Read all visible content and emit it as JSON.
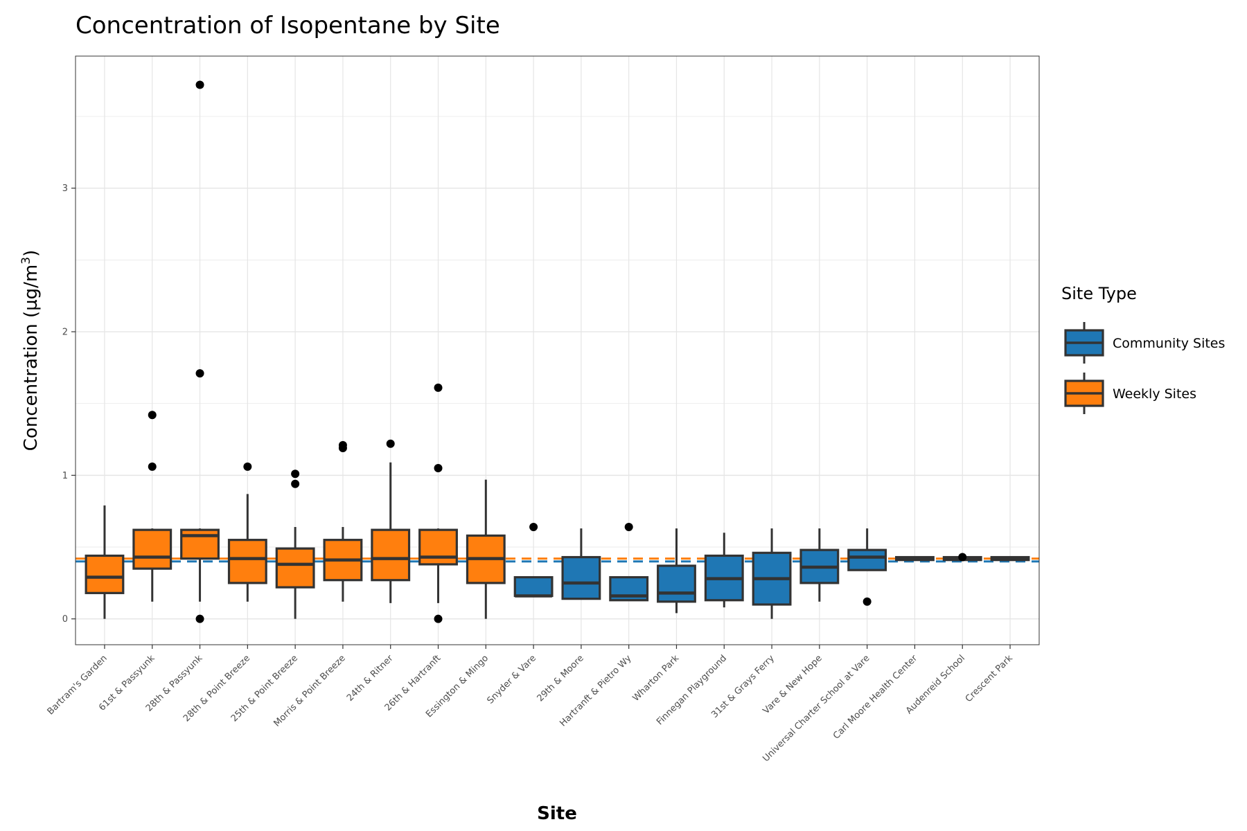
{
  "chart_data": {
    "type": "boxplot",
    "title": "Concentration of Isopentane by Site",
    "xlabel": "Site",
    "ylabel": {
      "main": "Concentration (µg/m",
      "superscript": "3",
      "close": ")"
    },
    "ylim": [
      -0.18,
      3.92
    ],
    "yticks": [
      0,
      1,
      2,
      3
    ],
    "grid": true,
    "colors": {
      "Weekly Sites": "#ff7f0e",
      "Community Sites": "#1f77b4",
      "outline": "#333333",
      "grid": "#e5e5e5"
    },
    "legend": {
      "title": "Site Type",
      "position": "right",
      "items": [
        {
          "label": "Community Sites",
          "color": "#1f77b4"
        },
        {
          "label": "Weekly Sites",
          "color": "#ff7f0e"
        }
      ]
    },
    "reference_lines": [
      {
        "series": "Weekly Sites",
        "y": 0.42,
        "color": "#ff7f0e",
        "style": "dashed"
      },
      {
        "series": "Community Sites",
        "y": 0.4,
        "color": "#1f77b4",
        "style": "dashed"
      }
    ],
    "sites": [
      {
        "name": "Bartram's Garden",
        "type": "Weekly Sites",
        "whislo": 0.0,
        "q1": 0.18,
        "med": 0.29,
        "q3": 0.44,
        "whishi": 0.79,
        "outliers": []
      },
      {
        "name": "61st & Passyunk",
        "type": "Weekly Sites",
        "whislo": 0.12,
        "q1": 0.35,
        "med": 0.43,
        "q3": 0.62,
        "whishi": 0.63,
        "outliers": [
          1.06,
          1.42
        ]
      },
      {
        "name": "28th & Passyunk",
        "type": "Weekly Sites",
        "whislo": 0.12,
        "q1": 0.42,
        "med": 0.58,
        "q3": 0.62,
        "whishi": 0.63,
        "outliers": [
          0.0,
          1.71,
          3.72
        ]
      },
      {
        "name": "28th & Point Breeze",
        "type": "Weekly Sites",
        "whislo": 0.12,
        "q1": 0.25,
        "med": 0.42,
        "q3": 0.55,
        "whishi": 0.87,
        "outliers": [
          1.06
        ]
      },
      {
        "name": "25th & Point Breeze",
        "type": "Weekly Sites",
        "whislo": 0.0,
        "q1": 0.22,
        "med": 0.38,
        "q3": 0.49,
        "whishi": 0.64,
        "outliers": [
          0.94,
          1.01
        ]
      },
      {
        "name": "Morris & Point Breeze",
        "type": "Weekly Sites",
        "whislo": 0.12,
        "q1": 0.27,
        "med": 0.41,
        "q3": 0.55,
        "whishi": 0.64,
        "outliers": [
          1.19,
          1.21
        ]
      },
      {
        "name": "24th & Ritner",
        "type": "Weekly Sites",
        "whislo": 0.11,
        "q1": 0.27,
        "med": 0.42,
        "q3": 0.62,
        "whishi": 1.09,
        "outliers": [
          1.22
        ]
      },
      {
        "name": "26th & Hartranft",
        "type": "Weekly Sites",
        "whislo": 0.11,
        "q1": 0.38,
        "med": 0.43,
        "q3": 0.62,
        "whishi": 0.63,
        "outliers": [
          0.0,
          1.05,
          1.61
        ]
      },
      {
        "name": "Essington & Mingo",
        "type": "Weekly Sites",
        "whislo": 0.0,
        "q1": 0.25,
        "med": 0.42,
        "q3": 0.58,
        "whishi": 0.97,
        "outliers": []
      },
      {
        "name": "Snyder & Vare",
        "type": "Community Sites",
        "whislo": 0.16,
        "q1": 0.16,
        "med": 0.16,
        "q3": 0.29,
        "whishi": 0.29,
        "outliers": [
          0.64
        ]
      },
      {
        "name": "29th & Moore",
        "type": "Community Sites",
        "whislo": 0.14,
        "q1": 0.14,
        "med": 0.25,
        "q3": 0.43,
        "whishi": 0.63,
        "outliers": []
      },
      {
        "name": "Hartranft & Pietro Wy",
        "type": "Community Sites",
        "whislo": 0.13,
        "q1": 0.13,
        "med": 0.16,
        "q3": 0.29,
        "whishi": 0.29,
        "outliers": [
          0.64
        ]
      },
      {
        "name": "Wharton Park",
        "type": "Community Sites",
        "whislo": 0.04,
        "q1": 0.12,
        "med": 0.18,
        "q3": 0.37,
        "whishi": 0.63,
        "outliers": []
      },
      {
        "name": "Finnegan Playground",
        "type": "Community Sites",
        "whislo": 0.08,
        "q1": 0.13,
        "med": 0.28,
        "q3": 0.44,
        "whishi": 0.6,
        "outliers": []
      },
      {
        "name": "31st & Grays Ferry",
        "type": "Community Sites",
        "whislo": 0.0,
        "q1": 0.1,
        "med": 0.28,
        "q3": 0.46,
        "whishi": 0.63,
        "outliers": []
      },
      {
        "name": "Vare & New Hope",
        "type": "Community Sites",
        "whislo": 0.12,
        "q1": 0.25,
        "med": 0.36,
        "q3": 0.48,
        "whishi": 0.63,
        "outliers": []
      },
      {
        "name": "Universal Charter School at Vare",
        "type": "Community Sites",
        "whislo": 0.34,
        "q1": 0.34,
        "med": 0.43,
        "q3": 0.48,
        "whishi": 0.63,
        "outliers": [
          0.12
        ]
      },
      {
        "name": "Carl Moore Health Center",
        "type": "Community Sites",
        "whislo": 0.41,
        "q1": 0.41,
        "med": 0.42,
        "q3": 0.43,
        "whishi": 0.43,
        "outliers": []
      },
      {
        "name": "Audenreid School",
        "type": "Community Sites",
        "whislo": 0.41,
        "q1": 0.41,
        "med": 0.42,
        "q3": 0.43,
        "whishi": 0.43,
        "outliers": [
          0.43
        ]
      },
      {
        "name": "Crescent Park",
        "type": "Community Sites",
        "whislo": 0.41,
        "q1": 0.41,
        "med": 0.42,
        "q3": 0.43,
        "whishi": 0.43,
        "outliers": []
      }
    ]
  }
}
